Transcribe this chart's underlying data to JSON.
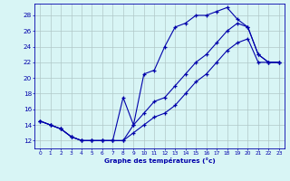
{
  "xlabel": "Graphe des températures (°c)",
  "bg_color": "#d8f5f5",
  "line_color": "#0000aa",
  "grid_color": "#b0c8c8",
  "xlim": [
    -0.5,
    23.5
  ],
  "ylim": [
    11,
    29.5
  ],
  "yticks": [
    12,
    14,
    16,
    18,
    20,
    22,
    24,
    26,
    28
  ],
  "xticks": [
    0,
    1,
    2,
    3,
    4,
    5,
    6,
    7,
    8,
    9,
    10,
    11,
    12,
    13,
    14,
    15,
    16,
    17,
    18,
    19,
    20,
    21,
    22,
    23
  ],
  "line1_x": [
    0,
    1,
    2,
    3,
    4,
    5,
    6,
    7,
    8,
    9,
    10,
    11,
    12,
    13,
    14,
    15,
    16,
    17,
    18,
    19,
    20,
    21,
    22,
    23
  ],
  "line1_y": [
    14.5,
    14,
    13.5,
    12.5,
    12,
    12,
    12,
    12,
    17.5,
    14,
    20.5,
    21,
    24,
    26.5,
    27,
    28,
    28,
    28.5,
    29,
    27.5,
    26.5,
    23,
    22,
    22
  ],
  "line2_x": [
    0,
    1,
    2,
    3,
    4,
    5,
    6,
    7,
    8,
    9,
    10,
    11,
    12,
    13,
    14,
    15,
    16,
    17,
    18,
    19,
    20,
    21,
    22,
    23
  ],
  "line2_y": [
    14.5,
    14,
    13.5,
    12.5,
    12,
    12,
    12,
    12,
    12,
    14,
    15.5,
    17,
    17.5,
    19,
    20.5,
    22,
    23,
    24.5,
    26,
    27,
    26.5,
    23,
    22,
    22
  ],
  "line3_x": [
    0,
    1,
    2,
    3,
    4,
    5,
    6,
    7,
    8,
    9,
    10,
    11,
    12,
    13,
    14,
    15,
    16,
    17,
    18,
    19,
    20,
    21,
    22,
    23
  ],
  "line3_y": [
    14.5,
    14,
    13.5,
    12.5,
    12,
    12,
    12,
    12,
    12,
    13,
    14,
    15,
    15.5,
    16.5,
    18,
    19.5,
    20.5,
    22,
    23.5,
    24.5,
    25,
    22,
    22,
    22
  ]
}
